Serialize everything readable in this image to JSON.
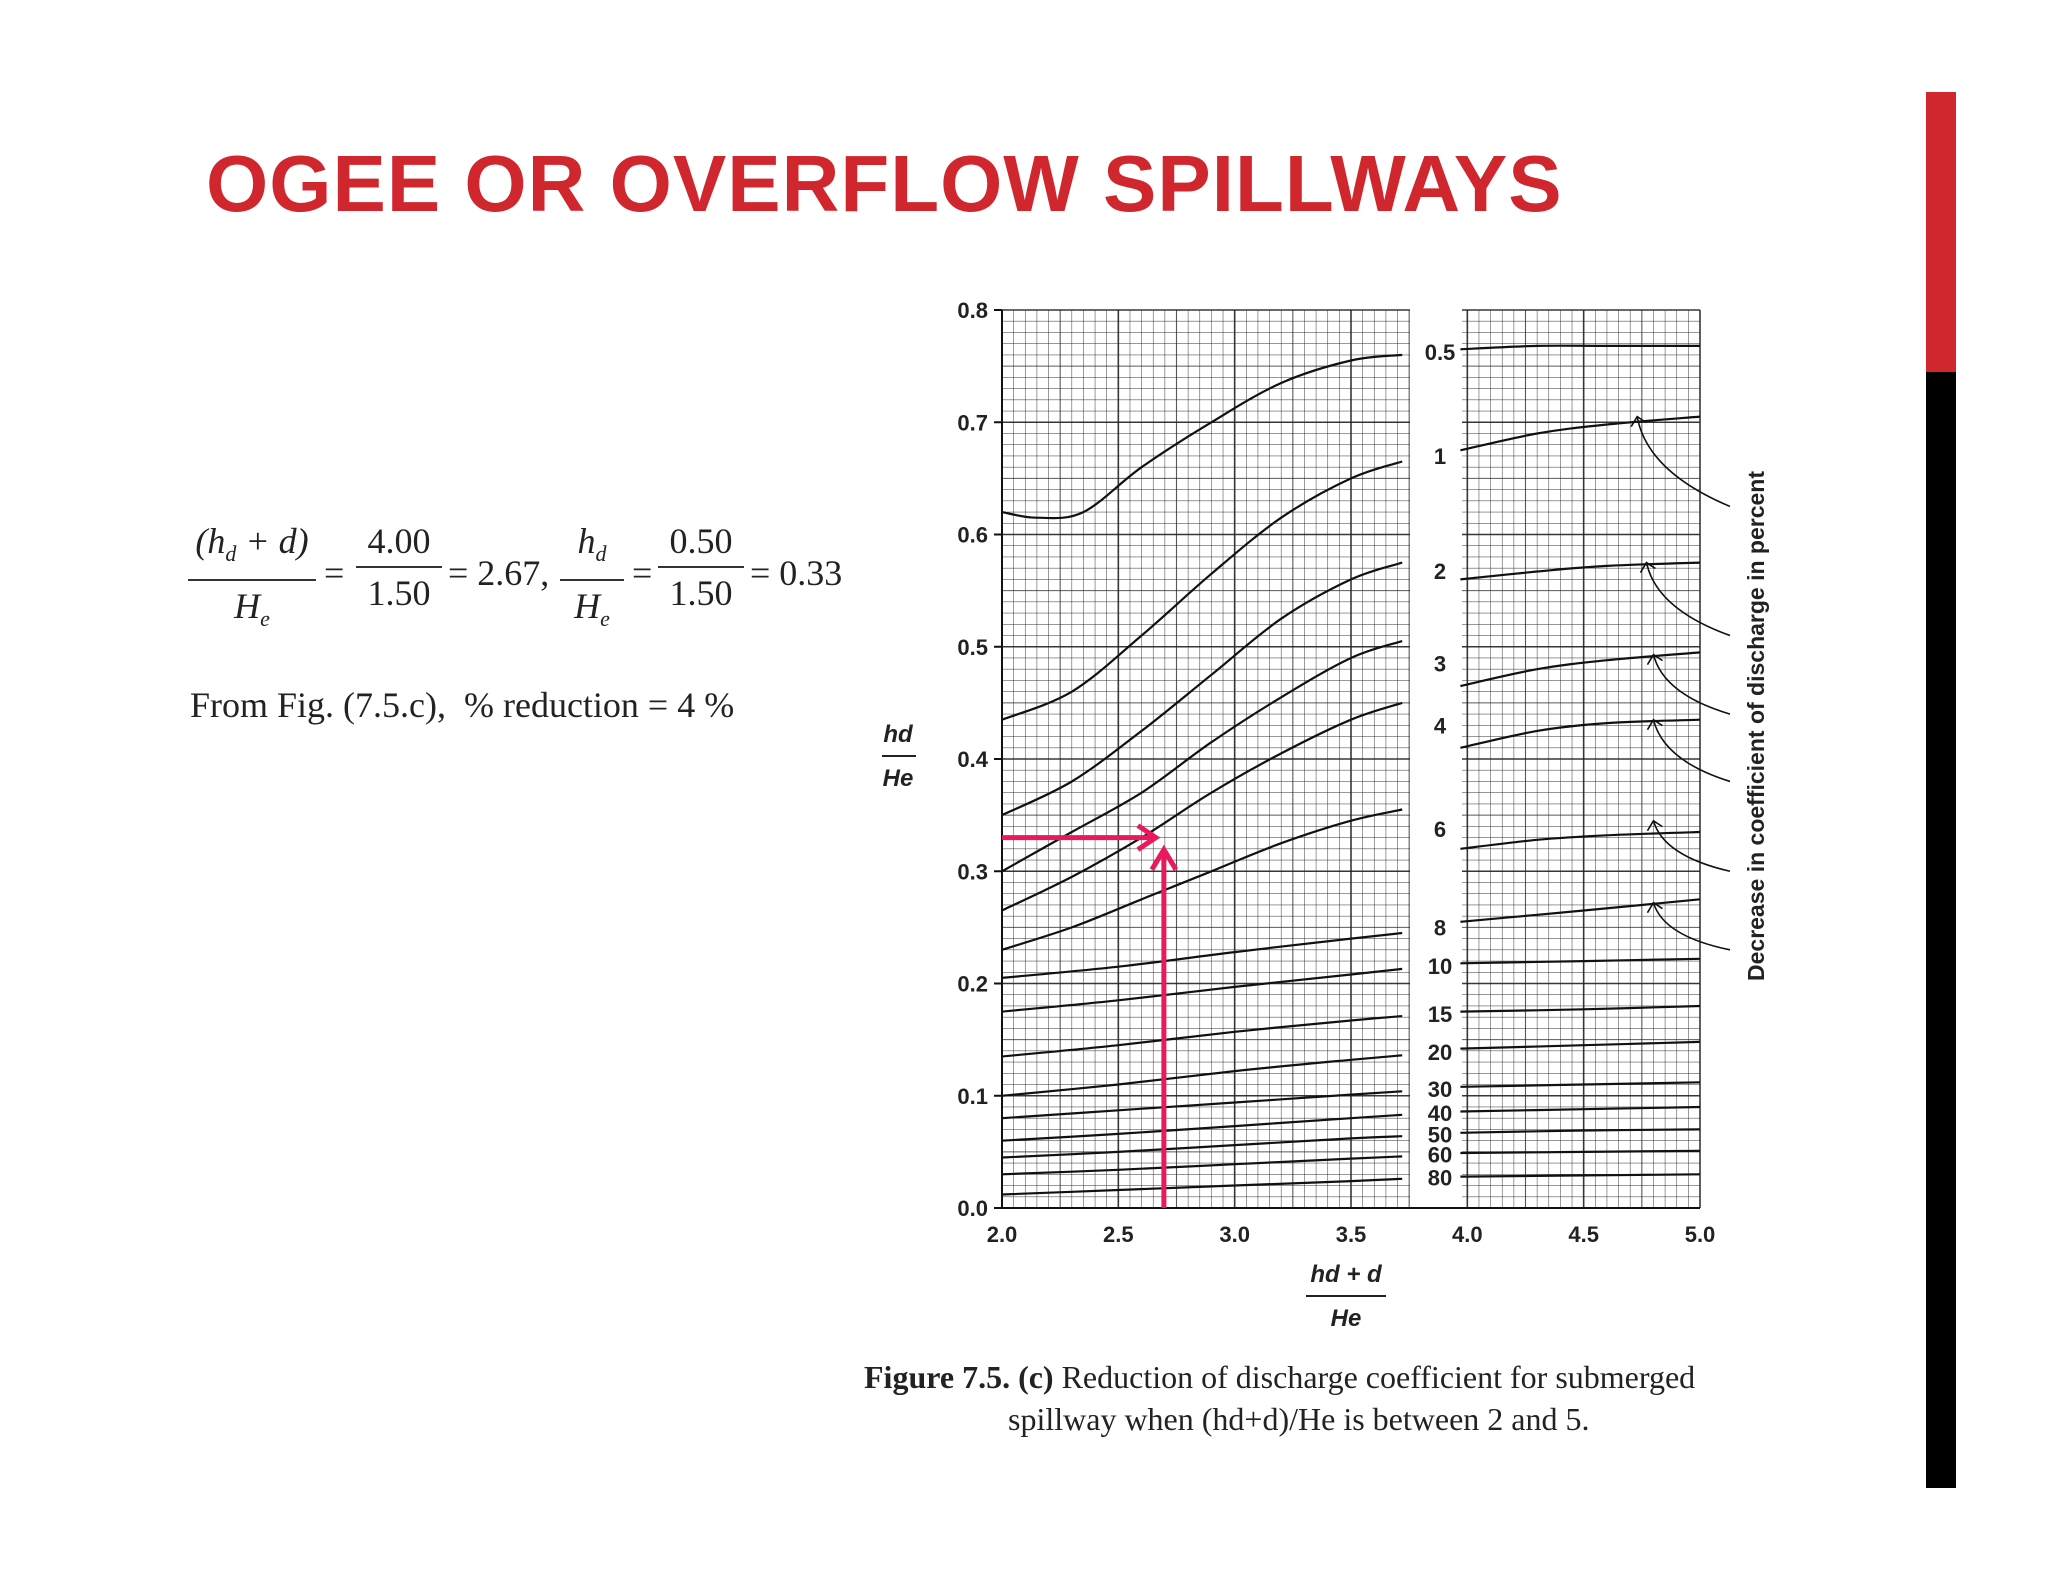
{
  "slide": {
    "title": "OGEE OR OVERFLOW SPILLWAYS",
    "accent_color": "#d0262d",
    "bar_top_color": "#d0262d",
    "bar_bottom_color": "#000000"
  },
  "equation": {
    "frac1_num": "(h",
    "frac1_num_sub": "d",
    "frac1_num_tail": " + d)",
    "frac1_den": "H",
    "frac1_den_sub": "e",
    "eq1": "=",
    "frac2_num": "4.00",
    "frac2_den": "1.50",
    "eq2": "= 2.67,",
    "frac3_num": "h",
    "frac3_num_sub": "d",
    "frac3_den": "H",
    "frac3_den_sub": "e",
    "eq3": "=",
    "frac4_num": "0.50",
    "frac4_den": "1.50",
    "eq4": "= 0.33"
  },
  "from_text": "From Fig. (7.5.c),  % reduction = 4 %",
  "caption": {
    "label": "Figure 7.5. (c)",
    "line1": " Reduction of discharge coefficient for submerged",
    "line2": "spillway when (hd+d)/He is between 2 and 5."
  },
  "chart_data": {
    "type": "line",
    "xlabel": "hd + d / He",
    "ylabel": "hd / He",
    "right_label": "Decrease in coefficient of discharge in percent",
    "xlim": [
      2.0,
      5.0
    ],
    "ylim": [
      0.0,
      0.8
    ],
    "x_ticks": [
      "2.0",
      "2.5",
      "3.0",
      "3.5",
      "4.0",
      "4.5",
      "5.0"
    ],
    "y_ticks": [
      "0.0",
      "0.1",
      "0.2",
      "0.3",
      "0.4",
      "0.5",
      "0.6",
      "0.7",
      "0.8"
    ],
    "grid": true,
    "label_column_x": [
      3.72,
      3.97
    ],
    "series": [
      {
        "name": "0.5",
        "x": [
          2.0,
          2.15,
          2.35,
          2.6,
          2.9,
          3.2,
          3.5,
          3.72,
          3.97,
          4.3,
          4.6,
          5.0
        ],
        "y": [
          0.62,
          0.615,
          0.62,
          0.66,
          0.7,
          0.735,
          0.755,
          0.76,
          0.765,
          0.768,
          0.768,
          0.768
        ]
      },
      {
        "name": "1",
        "x": [
          2.0,
          2.3,
          2.6,
          2.9,
          3.2,
          3.5,
          3.72,
          3.97,
          4.3,
          4.6,
          5.0
        ],
        "y": [
          0.435,
          0.46,
          0.51,
          0.565,
          0.615,
          0.65,
          0.665,
          0.675,
          0.69,
          0.698,
          0.705
        ]
      },
      {
        "name": "2",
        "x": [
          2.0,
          2.3,
          2.6,
          2.9,
          3.2,
          3.5,
          3.72,
          3.97,
          4.3,
          4.6,
          5.0
        ],
        "y": [
          0.35,
          0.38,
          0.425,
          0.475,
          0.525,
          0.56,
          0.575,
          0.56,
          0.567,
          0.572,
          0.575
        ]
      },
      {
        "name": "3",
        "x": [
          2.0,
          2.3,
          2.6,
          2.9,
          3.2,
          3.5,
          3.72,
          3.97,
          4.3,
          4.6,
          5.0
        ],
        "y": [
          0.3,
          0.335,
          0.37,
          0.415,
          0.455,
          0.49,
          0.505,
          0.465,
          0.48,
          0.488,
          0.495
        ]
      },
      {
        "name": "4",
        "x": [
          2.0,
          2.3,
          2.6,
          2.9,
          3.2,
          3.5,
          3.72,
          3.97,
          4.3,
          4.6,
          5.0
        ],
        "y": [
          0.265,
          0.295,
          0.33,
          0.37,
          0.405,
          0.435,
          0.45,
          0.41,
          0.425,
          0.432,
          0.435
        ]
      },
      {
        "name": "6",
        "x": [
          2.0,
          2.3,
          2.6,
          2.9,
          3.2,
          3.5,
          3.72,
          3.97,
          4.3,
          4.6,
          5.0
        ],
        "y": [
          0.23,
          0.25,
          0.275,
          0.3,
          0.325,
          0.345,
          0.355,
          0.32,
          0.328,
          0.332,
          0.335
        ]
      },
      {
        "name": "8",
        "x": [
          2.0,
          2.5,
          3.0,
          3.5,
          3.72,
          3.97,
          4.5,
          5.0
        ],
        "y": [
          0.205,
          0.215,
          0.228,
          0.24,
          0.245,
          0.255,
          0.265,
          0.275
        ]
      },
      {
        "name": "10",
        "x": [
          2.0,
          2.5,
          3.0,
          3.5,
          3.72,
          3.97,
          4.5,
          5.0
        ],
        "y": [
          0.175,
          0.185,
          0.197,
          0.208,
          0.213,
          0.218,
          0.22,
          0.222
        ]
      },
      {
        "name": "15",
        "x": [
          2.0,
          2.5,
          3.0,
          3.5,
          3.72,
          3.97,
          4.5,
          5.0
        ],
        "y": [
          0.135,
          0.145,
          0.157,
          0.167,
          0.171,
          0.175,
          0.177,
          0.18
        ]
      },
      {
        "name": "20",
        "x": [
          2.0,
          2.5,
          3.0,
          3.5,
          3.72,
          3.97,
          4.5,
          5.0
        ],
        "y": [
          0.1,
          0.11,
          0.122,
          0.132,
          0.136,
          0.142,
          0.145,
          0.148
        ]
      },
      {
        "name": "30",
        "x": [
          2.0,
          2.5,
          3.0,
          3.5,
          3.72,
          3.97,
          4.5,
          5.0
        ],
        "y": [
          0.08,
          0.087,
          0.094,
          0.101,
          0.104,
          0.108,
          0.11,
          0.112
        ]
      },
      {
        "name": "40",
        "x": [
          2.0,
          2.5,
          3.0,
          3.5,
          3.72,
          3.97,
          4.5,
          5.0
        ],
        "y": [
          0.06,
          0.066,
          0.073,
          0.08,
          0.083,
          0.086,
          0.088,
          0.09
        ]
      },
      {
        "name": "50",
        "x": [
          2.0,
          2.5,
          3.0,
          3.5,
          3.72,
          3.97,
          4.5,
          5.0
        ],
        "y": [
          0.045,
          0.05,
          0.056,
          0.062,
          0.064,
          0.067,
          0.069,
          0.07
        ]
      },
      {
        "name": "60",
        "x": [
          2.0,
          2.5,
          3.0,
          3.5,
          3.72,
          3.97,
          4.5,
          5.0
        ],
        "y": [
          0.03,
          0.034,
          0.039,
          0.044,
          0.046,
          0.049,
          0.05,
          0.051
        ]
      },
      {
        "name": "80",
        "x": [
          2.0,
          2.5,
          3.0,
          3.5,
          3.72,
          3.97,
          4.5,
          5.0
        ],
        "y": [
          0.012,
          0.016,
          0.02,
          0.024,
          0.026,
          0.028,
          0.029,
          0.03
        ]
      }
    ],
    "annotation_arrows": [
      {
        "from": [
          5.0,
          0.625
        ],
        "to": [
          4.73,
          0.705
        ]
      },
      {
        "from": [
          5.0,
          0.51
        ],
        "to": [
          4.77,
          0.575
        ]
      },
      {
        "from": [
          5.0,
          0.44
        ],
        "to": [
          4.8,
          0.493
        ]
      },
      {
        "from": [
          5.0,
          0.38
        ],
        "to": [
          4.8,
          0.435
        ]
      },
      {
        "from": [
          5.0,
          0.3
        ],
        "to": [
          4.8,
          0.345
        ]
      },
      {
        "from": [
          5.0,
          0.23
        ],
        "to": [
          4.8,
          0.272
        ]
      }
    ],
    "reading": {
      "x": 2.67,
      "y": 0.33,
      "color": "#e8195c"
    }
  }
}
